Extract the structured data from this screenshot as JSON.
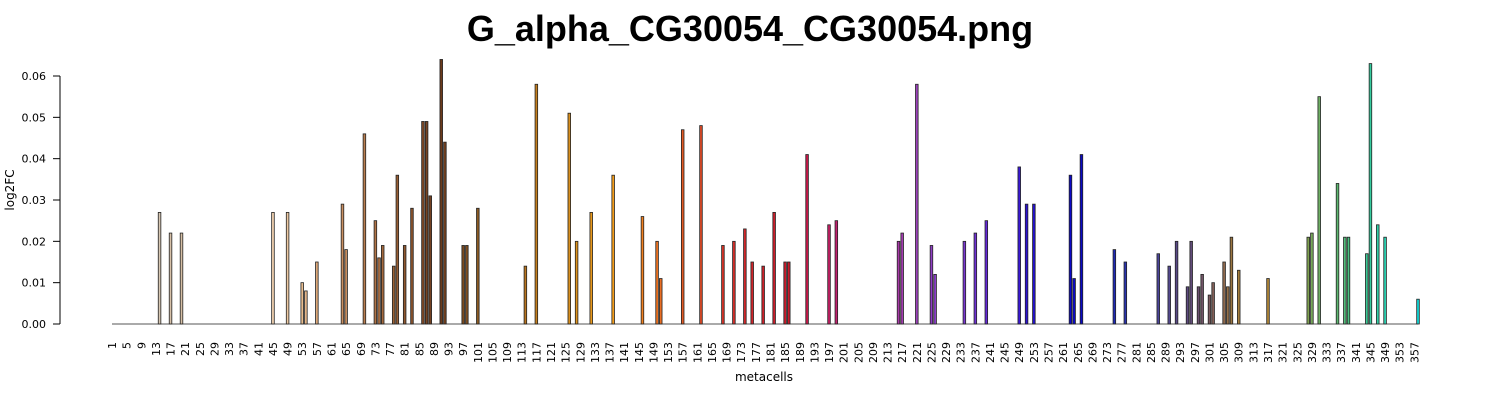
{
  "chart_data": {
    "type": "bar",
    "title": "G_alpha_CG30054_CG30054.png",
    "xlabel": "metacells",
    "ylabel": "log2FC",
    "ylim": [
      0,
      0.06
    ],
    "yticks": [
      "0.00",
      "0.01",
      "0.02",
      "0.03",
      "0.04",
      "0.05",
      "0.06"
    ],
    "x_range": [
      1,
      358
    ],
    "xtick_step": 4,
    "grid": false,
    "legend": "none",
    "bars": [
      {
        "x": 14,
        "value": 0.027,
        "color": "#d7c7b2"
      },
      {
        "x": 17,
        "value": 0.022,
        "color": "#d7c1a8"
      },
      {
        "x": 20,
        "value": 0.022,
        "color": "#d6bfa5"
      },
      {
        "x": 45,
        "value": 0.027,
        "color": "#f2d2b0"
      },
      {
        "x": 49,
        "value": 0.027,
        "color": "#eecaa3"
      },
      {
        "x": 53,
        "value": 0.01,
        "color": "#e8bd8f"
      },
      {
        "x": 54,
        "value": 0.008,
        "color": "#e3b588"
      },
      {
        "x": 57,
        "value": 0.015,
        "color": "#dda878"
      },
      {
        "x": 64,
        "value": 0.029,
        "color": "#c99062"
      },
      {
        "x": 65,
        "value": 0.018,
        "color": "#c68d5f"
      },
      {
        "x": 70,
        "value": 0.046,
        "color": "#b97d4f"
      },
      {
        "x": 73,
        "value": 0.025,
        "color": "#b07447"
      },
      {
        "x": 74,
        "value": 0.016,
        "color": "#a96d41"
      },
      {
        "x": 75,
        "value": 0.019,
        "color": "#a56a3e"
      },
      {
        "x": 78,
        "value": 0.014,
        "color": "#9b6237"
      },
      {
        "x": 79,
        "value": 0.036,
        "color": "#975e34"
      },
      {
        "x": 81,
        "value": 0.019,
        "color": "#90582f"
      },
      {
        "x": 83,
        "value": 0.028,
        "color": "#89522b"
      },
      {
        "x": 86,
        "value": 0.049,
        "color": "#7c4725"
      },
      {
        "x": 87,
        "value": 0.049,
        "color": "#784423"
      },
      {
        "x": 88,
        "value": 0.031,
        "color": "#734121"
      },
      {
        "x": 91,
        "value": 0.064,
        "color": "#6b3b1c"
      },
      {
        "x": 92,
        "value": 0.044,
        "color": "#6f3e1e"
      },
      {
        "x": 97,
        "value": 0.019,
        "color": "#7a4a1f"
      },
      {
        "x": 98,
        "value": 0.019,
        "color": "#7e4d20"
      },
      {
        "x": 101,
        "value": 0.028,
        "color": "#8b5a22"
      },
      {
        "x": 114,
        "value": 0.014,
        "color": "#b8741f"
      },
      {
        "x": 117,
        "value": 0.058,
        "color": "#c47e1e"
      },
      {
        "x": 126,
        "value": 0.051,
        "color": "#d98f1d"
      },
      {
        "x": 128,
        "value": 0.02,
        "color": "#de931d"
      },
      {
        "x": 132,
        "value": 0.027,
        "color": "#e8981c"
      },
      {
        "x": 138,
        "value": 0.036,
        "color": "#f29c1b"
      },
      {
        "x": 146,
        "value": 0.026,
        "color": "#f08020"
      },
      {
        "x": 150,
        "value": 0.02,
        "color": "#ec7221"
      },
      {
        "x": 151,
        "value": 0.011,
        "color": "#ea6e22"
      },
      {
        "x": 157,
        "value": 0.047,
        "color": "#e35a24"
      },
      {
        "x": 162,
        "value": 0.048,
        "color": "#dd4a26"
      },
      {
        "x": 168,
        "value": 0.019,
        "color": "#d73428"
      },
      {
        "x": 171,
        "value": 0.02,
        "color": "#d42e29"
      },
      {
        "x": 174,
        "value": 0.023,
        "color": "#d1282a"
      },
      {
        "x": 176,
        "value": 0.015,
        "color": "#cf252a"
      },
      {
        "x": 179,
        "value": 0.014,
        "color": "#cd222a"
      },
      {
        "x": 182,
        "value": 0.027,
        "color": "#cb1f2b"
      },
      {
        "x": 185,
        "value": 0.015,
        "color": "#c91c2b"
      },
      {
        "x": 186,
        "value": 0.015,
        "color": "#c81b2b"
      },
      {
        "x": 191,
        "value": 0.041,
        "color": "#c8184a"
      },
      {
        "x": 197,
        "value": 0.024,
        "color": "#c41e63"
      },
      {
        "x": 199,
        "value": 0.025,
        "color": "#c22270"
      },
      {
        "x": 216,
        "value": 0.02,
        "color": "#a83aa8"
      },
      {
        "x": 217,
        "value": 0.022,
        "color": "#a23cb0"
      },
      {
        "x": 221,
        "value": 0.058,
        "color": "#9a40ba"
      },
      {
        "x": 225,
        "value": 0.019,
        "color": "#8f3ec4"
      },
      {
        "x": 226,
        "value": 0.012,
        "color": "#8a3ec8"
      },
      {
        "x": 234,
        "value": 0.02,
        "color": "#7a37d0"
      },
      {
        "x": 237,
        "value": 0.022,
        "color": "#7031d4"
      },
      {
        "x": 240,
        "value": 0.025,
        "color": "#6429d8"
      },
      {
        "x": 249,
        "value": 0.038,
        "color": "#3a18d6"
      },
      {
        "x": 251,
        "value": 0.029,
        "color": "#2c12d2"
      },
      {
        "x": 253,
        "value": 0.029,
        "color": "#2410cf"
      },
      {
        "x": 263,
        "value": 0.036,
        "color": "#0d0ac8"
      },
      {
        "x": 264,
        "value": 0.011,
        "color": "#0c0ac6"
      },
      {
        "x": 266,
        "value": 0.041,
        "color": "#0b0ac3"
      },
      {
        "x": 275,
        "value": 0.018,
        "color": "#1f2ab5"
      },
      {
        "x": 278,
        "value": 0.015,
        "color": "#2a33ad"
      },
      {
        "x": 287,
        "value": 0.017,
        "color": "#4a4498"
      },
      {
        "x": 290,
        "value": 0.014,
        "color": "#54498f"
      },
      {
        "x": 292,
        "value": 0.02,
        "color": "#5a4a88"
      },
      {
        "x": 295,
        "value": 0.009,
        "color": "#5e4b80"
      },
      {
        "x": 296,
        "value": 0.02,
        "color": "#624c7a"
      },
      {
        "x": 298,
        "value": 0.009,
        "color": "#6b5070"
      },
      {
        "x": 299,
        "value": 0.012,
        "color": "#735568"
      },
      {
        "x": 301,
        "value": 0.007,
        "color": "#7b5a5f"
      },
      {
        "x": 302,
        "value": 0.01,
        "color": "#836058"
      },
      {
        "x": 305,
        "value": 0.015,
        "color": "#8f6a4e"
      },
      {
        "x": 306,
        "value": 0.009,
        "color": "#957048"
      },
      {
        "x": 307,
        "value": 0.021,
        "color": "#9b7642"
      },
      {
        "x": 309,
        "value": 0.013,
        "color": "#a57e3c"
      },
      {
        "x": 317,
        "value": 0.011,
        "color": "#b08636"
      },
      {
        "x": 328,
        "value": 0.021,
        "color": "#7fa050"
      },
      {
        "x": 329,
        "value": 0.022,
        "color": "#77a85a"
      },
      {
        "x": 331,
        "value": 0.055,
        "color": "#6eaf63"
      },
      {
        "x": 336,
        "value": 0.034,
        "color": "#5db870"
      },
      {
        "x": 338,
        "value": 0.021,
        "color": "#52bd7a"
      },
      {
        "x": 339,
        "value": 0.021,
        "color": "#4cc081"
      },
      {
        "x": 344,
        "value": 0.017,
        "color": "#3cc895"
      },
      {
        "x": 345,
        "value": 0.063,
        "color": "#36cc9f"
      },
      {
        "x": 347,
        "value": 0.024,
        "color": "#30cfa8"
      },
      {
        "x": 349,
        "value": 0.021,
        "color": "#2ad2b2"
      },
      {
        "x": 358,
        "value": 0.006,
        "color": "#12d8d8"
      }
    ]
  }
}
